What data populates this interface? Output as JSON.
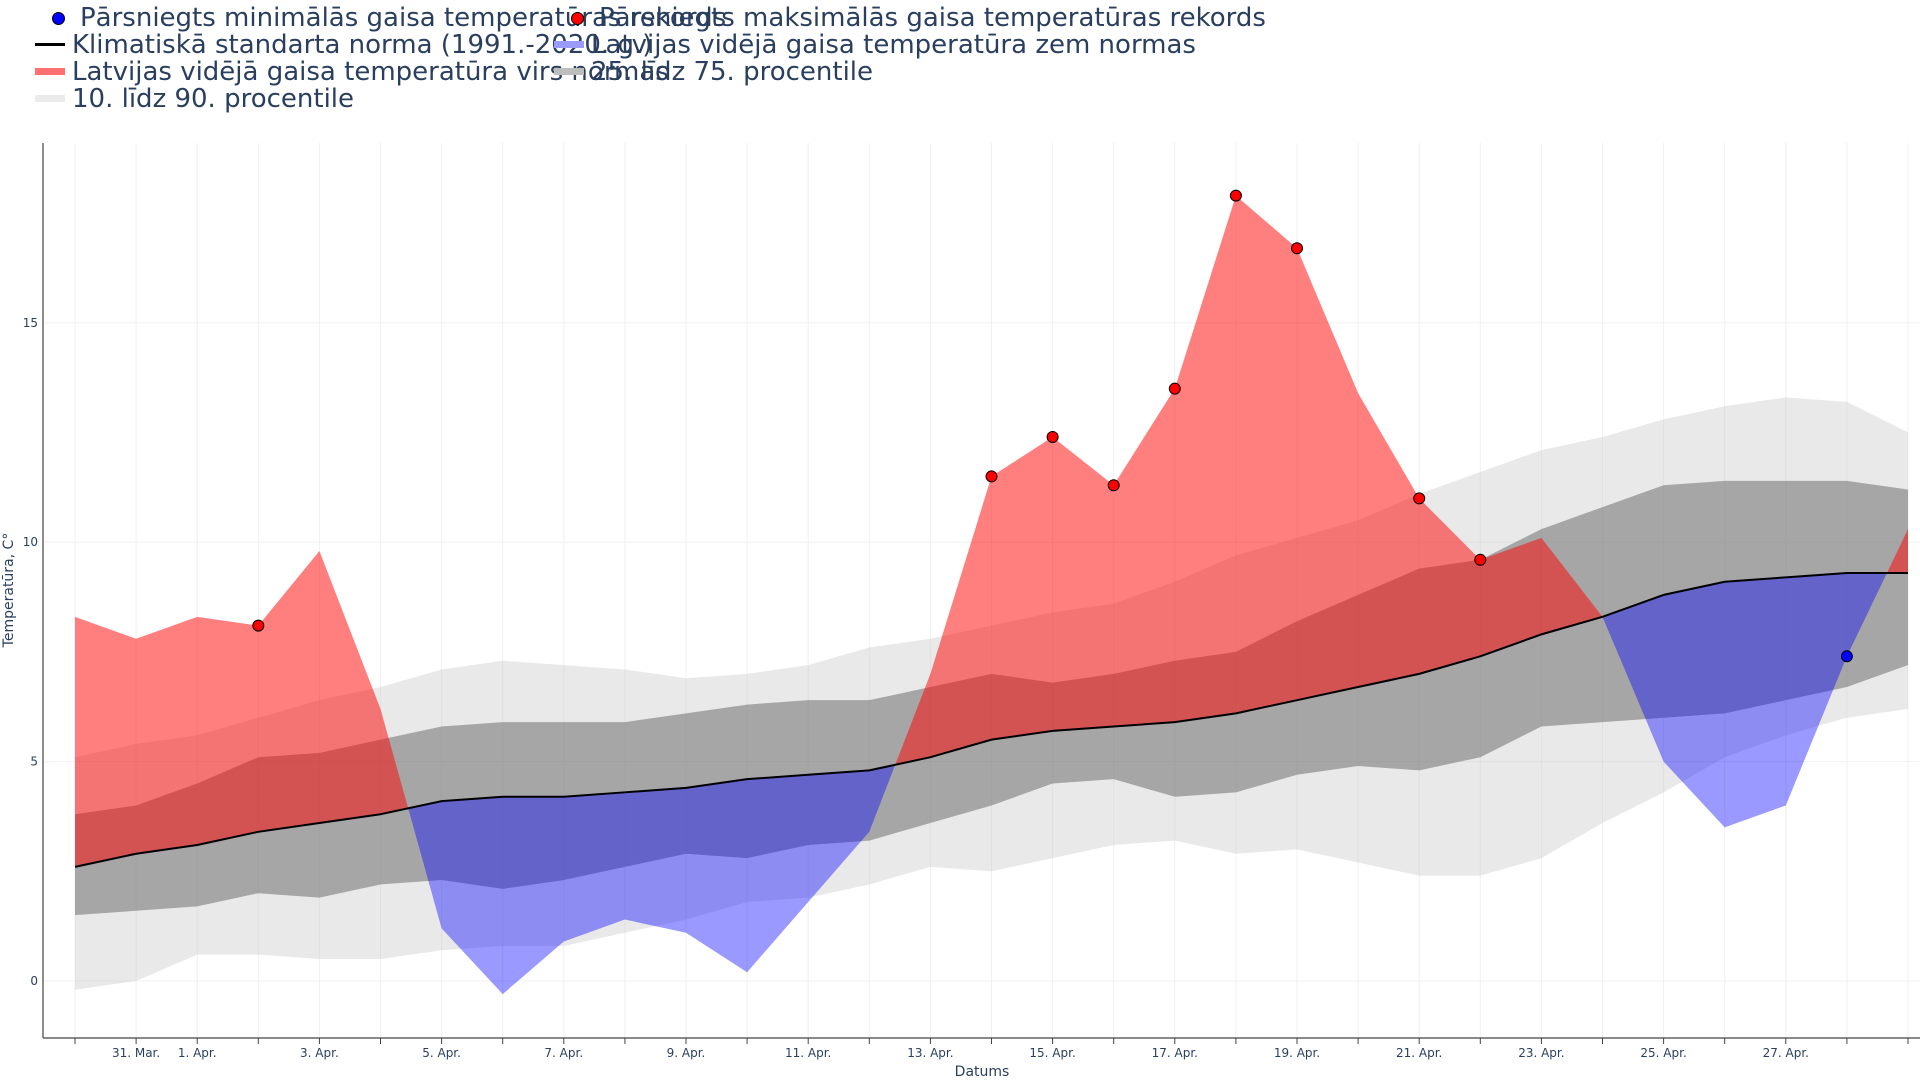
{
  "chart_data": {
    "type": "area",
    "xlabel": "Datums",
    "ylabel": "Temperatūra, C°",
    "ylim": [
      -1.3,
      19.1
    ],
    "yticks": [
      0,
      5,
      10,
      15
    ],
    "grid": true,
    "legend_placement": "top-left",
    "x": [
      "30. Mar.",
      "31. Mar.",
      "1. Apr.",
      "2. Apr.",
      "3. Apr.",
      "4. Apr.",
      "5. Apr.",
      "6. Apr.",
      "7. Apr.",
      "8. Apr.",
      "9. Apr.",
      "10. Apr.",
      "11. Apr.",
      "12. Apr.",
      "13. Apr.",
      "14. Apr.",
      "15. Apr.",
      "16. Apr.",
      "17. Apr.",
      "18. Apr.",
      "19. Apr.",
      "20. Apr.",
      "21. Apr.",
      "22. Apr.",
      "23. Apr.",
      "24. Apr.",
      "25. Apr.",
      "26. Apr.",
      "27. Apr.",
      "28. Apr.",
      "29. Apr."
    ],
    "xtick_labels": [
      "31. Mar.",
      "1. Apr.",
      "3. Apr.",
      "5. Apr.",
      "7. Apr.",
      "9. Apr.",
      "11. Apr.",
      "13. Apr.",
      "15. Apr.",
      "17. Apr.",
      "19. Apr.",
      "21. Apr.",
      "23. Apr.",
      "25. Apr.",
      "27. Apr."
    ],
    "series": [
      {
        "name": "Klimatiskā standarta norma (1991.-2020. g.)",
        "color": "#000000",
        "values": [
          2.6,
          2.9,
          3.1,
          3.4,
          3.6,
          3.8,
          4.1,
          4.2,
          4.2,
          4.3,
          4.4,
          4.6,
          4.7,
          4.8,
          5.1,
          5.5,
          5.7,
          5.8,
          5.9,
          6.1,
          6.4,
          6.7,
          7.0,
          7.4,
          7.9,
          8.3,
          8.8,
          9.1,
          9.2,
          9.3,
          9.3
        ]
      },
      {
        "name": "Latvijas vidējā gaisa temperatūra",
        "color": "#ff0000",
        "values": [
          8.3,
          7.8,
          8.3,
          8.1,
          9.8,
          6.2,
          1.2,
          -0.3,
          0.9,
          1.4,
          1.1,
          0.2,
          1.8,
          3.4,
          7.0,
          11.5,
          12.4,
          11.3,
          13.5,
          17.9,
          16.7,
          13.4,
          11.0,
          9.6,
          10.1,
          8.3,
          5.0,
          3.5,
          4.0,
          7.4,
          10.3
        ]
      },
      {
        "name": "25. līdz 75. procentile",
        "color": "#a0a0a0",
        "p25": [
          1.5,
          1.6,
          1.7,
          2.0,
          1.9,
          2.2,
          2.3,
          2.1,
          2.3,
          2.6,
          2.9,
          2.8,
          3.1,
          3.2,
          3.6,
          4.0,
          4.5,
          4.6,
          4.2,
          4.3,
          4.7,
          4.9,
          4.8,
          5.1,
          5.8,
          5.9,
          6.0,
          6.1,
          6.4,
          6.7,
          7.2
        ],
        "p75": [
          3.8,
          4.0,
          4.5,
          5.1,
          5.2,
          5.5,
          5.8,
          5.9,
          5.9,
          5.9,
          6.1,
          6.3,
          6.4,
          6.4,
          6.7,
          7.0,
          6.8,
          7.0,
          7.3,
          7.5,
          8.2,
          8.8,
          9.4,
          9.6,
          10.3,
          10.8,
          11.3,
          11.4,
          11.4,
          11.4,
          11.2
        ]
      },
      {
        "name": "10. līdz 90. procentile",
        "color": "#e6e6e6",
        "p10": [
          -0.2,
          0.0,
          0.6,
          0.6,
          0.5,
          0.5,
          0.7,
          0.8,
          0.8,
          1.1,
          1.4,
          1.8,
          1.9,
          2.2,
          2.6,
          2.5,
          2.8,
          3.1,
          3.2,
          2.9,
          3.0,
          2.7,
          2.4,
          2.4,
          2.8,
          3.6,
          4.3,
          5.1,
          5.6,
          6.0,
          6.2
        ],
        "p90": [
          5.1,
          5.4,
          5.6,
          6.0,
          6.4,
          6.7,
          7.1,
          7.3,
          7.2,
          7.1,
          6.9,
          7.0,
          7.2,
          7.6,
          7.8,
          8.1,
          8.4,
          8.6,
          9.1,
          9.7,
          10.1,
          10.5,
          11.1,
          11.6,
          12.1,
          12.4,
          12.8,
          13.1,
          13.3,
          13.2,
          12.5
        ]
      }
    ],
    "records_max": {
      "name": "Pārsniegts maksimālās gaisa temperatūras rekords",
      "color": "#ff0000",
      "points": [
        [
          "2. Apr.",
          8.1
        ],
        [
          "14. Apr.",
          11.5
        ],
        [
          "15. Apr.",
          12.4
        ],
        [
          "16. Apr.",
          11.3
        ],
        [
          "17. Apr.",
          13.5
        ],
        [
          "18. Apr.",
          17.9
        ],
        [
          "19. Apr.",
          16.7
        ],
        [
          "21. Apr.",
          11.0
        ],
        [
          "22. Apr.",
          9.6
        ]
      ]
    },
    "records_min": {
      "name": "Pārsniegts minimālās gaisa temperatūras rekords",
      "color": "#0000ff",
      "points": [
        [
          "28. Apr.",
          7.4
        ]
      ]
    }
  },
  "legend": {
    "items": [
      {
        "label": "Pārsniegts minimālās gaisa temperatūras rekords",
        "symbol": "dot",
        "color": "#0000ff"
      },
      {
        "label": "Pārsniegts maksimālās gaisa temperatūras rekords",
        "symbol": "dot",
        "color": "#ff0000"
      },
      {
        "label": "Klimatiskā standarta norma (1991.-2020. g.)",
        "symbol": "line",
        "color": "#000000"
      },
      {
        "label": "Latvijas vidējā gaisa temperatūra zem normas",
        "symbol": "band",
        "color": "#9a9aff"
      },
      {
        "label": "Latvijas vidējā gaisa temperatūra virs normas",
        "symbol": "band",
        "color": "#ff7070"
      },
      {
        "label": "25. līdz 75. procentile",
        "symbol": "band",
        "color": "#bdbdbd"
      },
      {
        "label": "10. līdz 90. procentile",
        "symbol": "band",
        "color": "#ebebeb"
      }
    ]
  },
  "colors": {
    "above_norm_fill": "rgba(255,0,0,0.5)",
    "below_norm_fill": "rgba(0,0,255,0.4)",
    "p25_p75_fill": "rgba(100,100,100,0.5)",
    "p10_p90_fill": "rgba(200,200,200,0.4)",
    "grid": "#f0f0f0",
    "text": "#2a3f5f"
  }
}
